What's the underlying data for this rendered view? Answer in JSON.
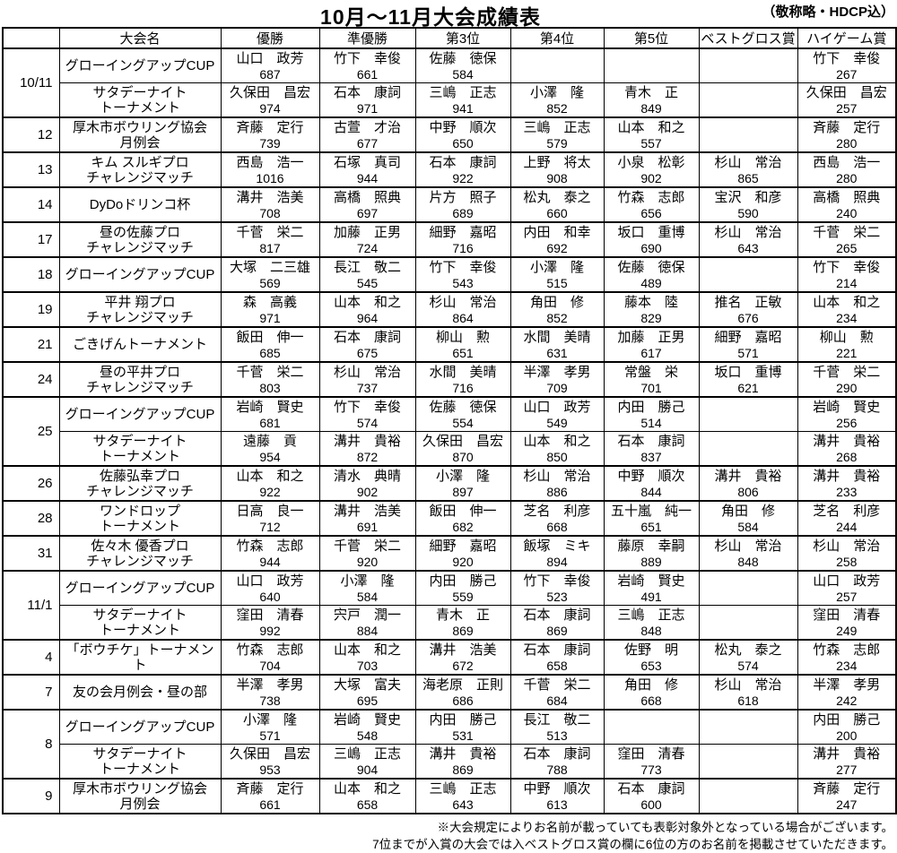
{
  "title": "10月～11月大会成績表",
  "subtitle": "（敬称略・HDCP込）",
  "columns": [
    "大会名",
    "優勝",
    "準優勝",
    "第3位",
    "第4位",
    "第5位",
    "ベストグロス賞",
    "ハイゲーム賞"
  ],
  "notes": [
    "※大会規定によりお名前が載っていても表彰対象外となっている場合がございます。",
    "7位までが入賞の大会では入ベストグロス賞の欄に6位の方のお名前を掲載させていただきます。"
  ],
  "rows": [
    {
      "date": "10/11",
      "dateSpan": 2,
      "groupStart": true,
      "event": "グローイングアップCUP",
      "results": [
        {
          "n": "山口　政芳",
          "s": "687"
        },
        {
          "n": "竹下　幸俊",
          "s": "661"
        },
        {
          "n": "佐藤　徳保",
          "s": "584"
        },
        null,
        null,
        null,
        {
          "n": "竹下　幸俊",
          "s": "267"
        }
      ]
    },
    {
      "groupStart": false,
      "event": "サタデーナイト\nトーナメント",
      "results": [
        {
          "n": "久保田　昌宏",
          "s": "974"
        },
        {
          "n": "石本　康詞",
          "s": "971"
        },
        {
          "n": "三嶋　正志",
          "s": "941"
        },
        {
          "n": "小澤　隆",
          "s": "852"
        },
        {
          "n": "青木　正",
          "s": "849"
        },
        null,
        {
          "n": "久保田　昌宏",
          "s": "257"
        }
      ]
    },
    {
      "date": "12",
      "dateSpan": 1,
      "groupStart": true,
      "event": "厚木市ボウリング協会\n月例会",
      "results": [
        {
          "n": "斉藤　定行",
          "s": "739"
        },
        {
          "n": "古萱　才治",
          "s": "677"
        },
        {
          "n": "中野　順次",
          "s": "650"
        },
        {
          "n": "三嶋　正志",
          "s": "579"
        },
        {
          "n": "山本　和之",
          "s": "557"
        },
        null,
        {
          "n": "斉藤　定行",
          "s": "280"
        }
      ]
    },
    {
      "date": "13",
      "dateSpan": 1,
      "groupStart": true,
      "event": "キム スルギプロ\nチャレンジマッチ",
      "results": [
        {
          "n": "西島　浩一",
          "s": "1016"
        },
        {
          "n": "石塚　真司",
          "s": "944"
        },
        {
          "n": "石本　康詞",
          "s": "922"
        },
        {
          "n": "上野　将太",
          "s": "908"
        },
        {
          "n": "小泉　松彰",
          "s": "902"
        },
        {
          "n": "杉山　常治",
          "s": "865"
        },
        {
          "n": "西島　浩一",
          "s": "280"
        }
      ]
    },
    {
      "date": "14",
      "dateSpan": 1,
      "groupStart": true,
      "event": "DyDoドリンコ杯",
      "results": [
        {
          "n": "溝井　浩美",
          "s": "708"
        },
        {
          "n": "高橋　照典",
          "s": "697"
        },
        {
          "n": "片方　照子",
          "s": "689"
        },
        {
          "n": "松丸　泰之",
          "s": "660"
        },
        {
          "n": "竹森　志郎",
          "s": "656"
        },
        {
          "n": "宝沢　和彦",
          "s": "590"
        },
        {
          "n": "高橋　照典",
          "s": "240"
        }
      ]
    },
    {
      "date": "17",
      "dateSpan": 1,
      "groupStart": true,
      "event": "昼の佐藤プロ\nチャレンジマッチ",
      "results": [
        {
          "n": "千菅　栄二",
          "s": "817"
        },
        {
          "n": "加藤　正男",
          "s": "724"
        },
        {
          "n": "細野　嘉昭",
          "s": "716"
        },
        {
          "n": "内田　和幸",
          "s": "692"
        },
        {
          "n": "坂口　重博",
          "s": "690"
        },
        {
          "n": "杉山　常治",
          "s": "643"
        },
        {
          "n": "千菅　栄二",
          "s": "265"
        }
      ]
    },
    {
      "date": "18",
      "dateSpan": 1,
      "groupStart": true,
      "event": "グローイングアップCUP",
      "results": [
        {
          "n": "大塚　二三雄",
          "s": "569"
        },
        {
          "n": "長江　敬二",
          "s": "545"
        },
        {
          "n": "竹下　幸俊",
          "s": "543"
        },
        {
          "n": "小澤　隆",
          "s": "515"
        },
        {
          "n": "佐藤　徳保",
          "s": "489"
        },
        null,
        {
          "n": "竹下　幸俊",
          "s": "214"
        }
      ]
    },
    {
      "date": "19",
      "dateSpan": 1,
      "groupStart": true,
      "event": "平井 翔プロ\nチャレンジマッチ",
      "results": [
        {
          "n": "森　高義",
          "s": "971"
        },
        {
          "n": "山本　和之",
          "s": "964"
        },
        {
          "n": "杉山　常治",
          "s": "864"
        },
        {
          "n": "角田　修",
          "s": "852"
        },
        {
          "n": "藤本　陸",
          "s": "829"
        },
        {
          "n": "推名　正敏",
          "s": "676"
        },
        {
          "n": "山本　和之",
          "s": "234"
        }
      ]
    },
    {
      "date": "21",
      "dateSpan": 1,
      "groupStart": true,
      "event": "ごきげんトーナメント",
      "results": [
        {
          "n": "飯田　伸一",
          "s": "685"
        },
        {
          "n": "石本　康詞",
          "s": "675"
        },
        {
          "n": "柳山　勲",
          "s": "651"
        },
        {
          "n": "水間　美晴",
          "s": "631"
        },
        {
          "n": "加藤　正男",
          "s": "617"
        },
        {
          "n": "細野　嘉昭",
          "s": "571"
        },
        {
          "n": "柳山　勲",
          "s": "221"
        }
      ]
    },
    {
      "date": "24",
      "dateSpan": 1,
      "groupStart": true,
      "event": "昼の平井プロ\nチャレンジマッチ",
      "results": [
        {
          "n": "千菅　栄二",
          "s": "803"
        },
        {
          "n": "杉山　常治",
          "s": "737"
        },
        {
          "n": "水間　美晴",
          "s": "716"
        },
        {
          "n": "半澤　孝男",
          "s": "709"
        },
        {
          "n": "常盤　栄",
          "s": "701"
        },
        {
          "n": "坂口　重博",
          "s": "621"
        },
        {
          "n": "千菅　栄二",
          "s": "290"
        }
      ]
    },
    {
      "date": "25",
      "dateSpan": 2,
      "groupStart": true,
      "event": "グローイングアップCUP",
      "results": [
        {
          "n": "岩崎　賢史",
          "s": "681"
        },
        {
          "n": "竹下　幸俊",
          "s": "574"
        },
        {
          "n": "佐藤　徳保",
          "s": "554"
        },
        {
          "n": "山口　政芳",
          "s": "549"
        },
        {
          "n": "内田　勝己",
          "s": "514"
        },
        null,
        {
          "n": "岩崎　賢史",
          "s": "256"
        }
      ]
    },
    {
      "groupStart": false,
      "event": "サタデーナイト\nトーナメント",
      "results": [
        {
          "n": "遠藤　貢",
          "s": "954"
        },
        {
          "n": "溝井　貴裕",
          "s": "872"
        },
        {
          "n": "久保田　昌宏",
          "s": "870"
        },
        {
          "n": "山本　和之",
          "s": "850"
        },
        {
          "n": "石本　康詞",
          "s": "837"
        },
        null,
        {
          "n": "溝井　貴裕",
          "s": "268"
        }
      ]
    },
    {
      "date": "26",
      "dateSpan": 1,
      "groupStart": true,
      "event": "佐藤弘幸プロ\nチャレンジマッチ",
      "results": [
        {
          "n": "山本　和之",
          "s": "922"
        },
        {
          "n": "清水　典晴",
          "s": "902"
        },
        {
          "n": "小澤　隆",
          "s": "897"
        },
        {
          "n": "杉山　常治",
          "s": "886"
        },
        {
          "n": "中野　順次",
          "s": "844"
        },
        {
          "n": "溝井　貴裕",
          "s": "806"
        },
        {
          "n": "溝井　貴裕",
          "s": "233"
        }
      ]
    },
    {
      "date": "28",
      "dateSpan": 1,
      "groupStart": true,
      "event": "ワンドロップ\nトーナメント",
      "results": [
        {
          "n": "日高　良一",
          "s": "712"
        },
        {
          "n": "溝井　浩美",
          "s": "691"
        },
        {
          "n": "飯田　伸一",
          "s": "682"
        },
        {
          "n": "芝名　利彦",
          "s": "668"
        },
        {
          "n": "五十嵐　純一",
          "s": "651"
        },
        {
          "n": "角田　修",
          "s": "584"
        },
        {
          "n": "芝名　利彦",
          "s": "244"
        }
      ]
    },
    {
      "date": "31",
      "dateSpan": 1,
      "groupStart": true,
      "event": "佐々木 優香プロ\nチャレンジマッチ",
      "results": [
        {
          "n": "竹森　志郎",
          "s": "944"
        },
        {
          "n": "千菅　栄二",
          "s": "920"
        },
        {
          "n": "細野　嘉昭",
          "s": "920"
        },
        {
          "n": "飯塚　ミキ",
          "s": "894"
        },
        {
          "n": "藤原　幸嗣",
          "s": "889"
        },
        {
          "n": "杉山　常治",
          "s": "848"
        },
        {
          "n": "杉山　常治",
          "s": "258"
        }
      ]
    },
    {
      "date": "11/1",
      "dateSpan": 2,
      "groupStart": true,
      "event": "グローイングアップCUP",
      "results": [
        {
          "n": "山口　政芳",
          "s": "640"
        },
        {
          "n": "小澤　隆",
          "s": "584"
        },
        {
          "n": "内田　勝己",
          "s": "559"
        },
        {
          "n": "竹下　幸俊",
          "s": "523"
        },
        {
          "n": "岩崎　賢史",
          "s": "491"
        },
        null,
        {
          "n": "山口　政芳",
          "s": "257"
        }
      ]
    },
    {
      "groupStart": false,
      "event": "サタデーナイト\nトーナメント",
      "results": [
        {
          "n": "窪田　清春",
          "s": "992"
        },
        {
          "n": "宍戸　潤一",
          "s": "884"
        },
        {
          "n": "青木　正",
          "s": "869"
        },
        {
          "n": "石本　康詞",
          "s": "869"
        },
        {
          "n": "三嶋　正志",
          "s": "848"
        },
        null,
        {
          "n": "窪田　清春",
          "s": "249"
        }
      ]
    },
    {
      "date": "4",
      "dateSpan": 1,
      "groupStart": true,
      "event": "「ボウチケ」トーナメント",
      "results": [
        {
          "n": "竹森　志郎",
          "s": "704"
        },
        {
          "n": "山本　和之",
          "s": "703"
        },
        {
          "n": "溝井　浩美",
          "s": "672"
        },
        {
          "n": "石本　康詞",
          "s": "658"
        },
        {
          "n": "佐野　明",
          "s": "653"
        },
        {
          "n": "松丸　泰之",
          "s": "574"
        },
        {
          "n": "竹森　志郎",
          "s": "234"
        }
      ]
    },
    {
      "date": "7",
      "dateSpan": 1,
      "groupStart": true,
      "event": "友の会月例会・昼の部",
      "results": [
        {
          "n": "半澤　孝男",
          "s": "738"
        },
        {
          "n": "大塚　富夫",
          "s": "695"
        },
        {
          "n": "海老原　正則",
          "s": "686"
        },
        {
          "n": "千菅　栄二",
          "s": "684"
        },
        {
          "n": "角田　修",
          "s": "668"
        },
        {
          "n": "杉山　常治",
          "s": "618"
        },
        {
          "n": "半澤　孝男",
          "s": "242"
        }
      ]
    },
    {
      "date": "8",
      "dateSpan": 2,
      "groupStart": true,
      "event": "グローイングアップCUP",
      "results": [
        {
          "n": "小澤　隆",
          "s": "571"
        },
        {
          "n": "岩崎　賢史",
          "s": "548"
        },
        {
          "n": "内田　勝己",
          "s": "531"
        },
        {
          "n": "長江　敬二",
          "s": "513"
        },
        null,
        null,
        {
          "n": "内田　勝己",
          "s": "200"
        }
      ]
    },
    {
      "groupStart": false,
      "event": "サタデーナイト\nトーナメント",
      "results": [
        {
          "n": "久保田　昌宏",
          "s": "953"
        },
        {
          "n": "三嶋　正志",
          "s": "904"
        },
        {
          "n": "溝井　貴裕",
          "s": "869"
        },
        {
          "n": "石本　康詞",
          "s": "788"
        },
        {
          "n": "窪田　清春",
          "s": "773"
        },
        null,
        {
          "n": "溝井　貴裕",
          "s": "277"
        }
      ]
    },
    {
      "date": "9",
      "dateSpan": 1,
      "groupStart": true,
      "event": "厚木市ボウリング協会\n月例会",
      "results": [
        {
          "n": "斉藤　定行",
          "s": "661"
        },
        {
          "n": "山本　和之",
          "s": "658"
        },
        {
          "n": "三嶋　正志",
          "s": "643"
        },
        {
          "n": "中野　順次",
          "s": "613"
        },
        {
          "n": "石本　康詞",
          "s": "600"
        },
        null,
        {
          "n": "斉藤　定行",
          "s": "247"
        }
      ]
    }
  ]
}
